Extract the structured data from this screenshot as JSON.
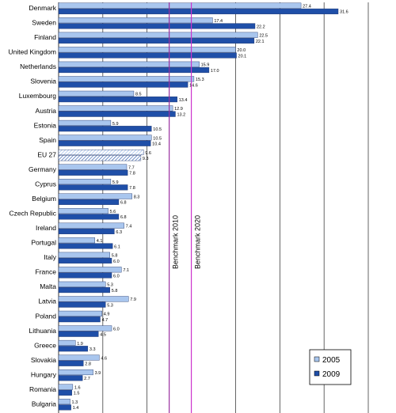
{
  "chart_data": {
    "type": "bar",
    "orientation": "horizontal",
    "title": "",
    "xlabel": "",
    "ylabel": "",
    "xlim": [
      0,
      35
    ],
    "grid": true,
    "legend_position": "bottom-right",
    "categories": [
      "Denmark",
      "Sweden",
      "Finland",
      "United Kingdom",
      "Netherlands",
      "Slovenia",
      "Luxembourg",
      "Austria",
      "Estonia",
      "Spain",
      "EU 27",
      "Germany",
      "Cyprus",
      "Belgium",
      "Czech Republic",
      "Ireland",
      "Portugal",
      "Italy",
      "France",
      "Malta",
      "Latvia",
      "Poland",
      "Lithuania",
      "Greece",
      "Slovakia",
      "Hungary",
      "Romania",
      "Bulgaria"
    ],
    "series": [
      {
        "name": "2005",
        "color": "#a9c6ee",
        "values": [
          27.4,
          17.4,
          22.5,
          20.0,
          15.9,
          15.3,
          8.5,
          12.9,
          5.9,
          10.5,
          9.6,
          7.7,
          5.9,
          8.3,
          5.6,
          7.4,
          4.1,
          5.8,
          7.1,
          5.3,
          7.9,
          4.9,
          6.0,
          1.9,
          4.6,
          3.9,
          1.6,
          1.3
        ],
        "labels": [
          "27.4",
          "17.4",
          "22.5",
          "20.0",
          "15.9",
          "15.3",
          "8.5",
          "12.9",
          "5.9",
          "10.5",
          "9.6",
          "7.7",
          "5.9",
          "8.3",
          "5.6",
          "7.4",
          "4.1",
          "5.8",
          "7.1",
          "5.3",
          "7.9",
          "4.9",
          "6.0",
          "1.9",
          "4.6",
          "3.9",
          "1.6",
          "1.3"
        ]
      },
      {
        "name": "2009",
        "color": "#1f4fa8",
        "values": [
          31.6,
          22.2,
          22.1,
          20.1,
          17.0,
          14.6,
          13.4,
          13.2,
          10.5,
          10.4,
          9.3,
          7.8,
          7.8,
          6.8,
          6.8,
          6.3,
          6.1,
          6.0,
          6.0,
          5.8,
          5.3,
          4.7,
          4.5,
          3.3,
          2.8,
          2.7,
          1.5,
          1.4
        ],
        "labels": [
          "31.6",
          "22.2",
          "22.1",
          "20.1",
          "17.0",
          "14.6",
          "13.4",
          "13.2",
          "10.5",
          "10.4",
          "9.3",
          "7.8",
          "7.8",
          "6.8",
          "6.8",
          "6.3",
          "6.1",
          "6.0",
          "6.0",
          "5.8",
          "5.3",
          "4.7",
          "4.5",
          "3.3",
          "2.8",
          "2.7",
          "1.5",
          "1.4"
        ]
      }
    ],
    "highlighted_category": "EU 27",
    "benchmarks": [
      {
        "label": "Benchmark 2010",
        "value": 12.5,
        "color": "#9a2fa0"
      },
      {
        "label": "Benchmark 2020",
        "value": 15,
        "color": "#cc33cc"
      }
    ]
  }
}
